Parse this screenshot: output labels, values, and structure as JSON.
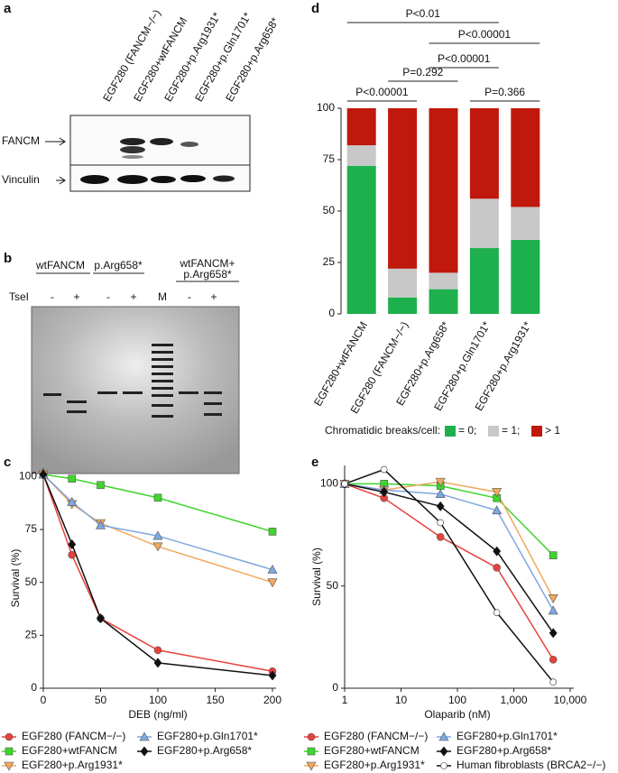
{
  "panel_labels": [
    "a",
    "b",
    "c",
    "d",
    "e"
  ],
  "blot": {
    "lanes": [
      "EGF280 (FANCM−/−)",
      "EGF280+wtFANCM",
      "EGF280+p.Arg1931*",
      "EGF280+p.Gln1701*",
      "EGF280+p.Arg658*"
    ],
    "rows": [
      "FANCM",
      "Vinculin"
    ]
  },
  "gel": {
    "groups": [
      [
        "wtFANCM"
      ],
      [
        "p.Arg658*"
      ],
      [
        "wtFANCM+",
        "p.Arg658*"
      ]
    ],
    "enzyme": "TseI",
    "lanes": [
      "-",
      "+",
      "-",
      "+",
      "M",
      "-",
      "+"
    ]
  },
  "chart_data": [
    {
      "type": "stacked-bar",
      "categories": [
        "EGF280+wtFANCM",
        "EGF280 (FANCM−/−)",
        "EGF280+p.Arg658*",
        "EGF280+p.Gln1701*",
        "EGF280+p.Arg1931*"
      ],
      "ylim": [
        0,
        100
      ],
      "yticks": [
        0,
        25,
        50,
        75,
        100
      ],
      "legend_title": "Chromatidic breaks/cell:",
      "series": [
        {
          "name": "= 0;",
          "color": "#1db04c",
          "values": [
            72,
            8,
            12,
            32,
            36
          ]
        },
        {
          "name": "= 1;",
          "color": "#c8c8c8",
          "values": [
            10,
            14,
            8,
            24,
            16
          ]
        },
        {
          "name": "> 1",
          "color": "#c0180c",
          "values": [
            18,
            78,
            80,
            44,
            48
          ]
        }
      ],
      "annotations": [
        "P<0.01",
        "P<0.00001",
        "P<0.00001",
        "P=0.292",
        "P<0.00001",
        "P=0.366"
      ]
    },
    {
      "type": "line",
      "xlabel": "DEB (ng/ml)",
      "ylabel": "Survival (%)",
      "x": [
        0,
        25,
        50,
        100,
        200
      ],
      "xlim": [
        0,
        200
      ],
      "xticks": [
        0,
        50,
        100,
        150,
        200
      ],
      "ylim": [
        0,
        104
      ],
      "yticks": [
        0,
        25,
        50,
        75,
        100
      ],
      "series": [
        {
          "name": "EGF280 (FANCM−/−)",
          "color": "#e8413c",
          "marker": "circle",
          "values": [
            101,
            63,
            33,
            18,
            8
          ]
        },
        {
          "name": "EGF280+wtFANCM",
          "color": "#3ed62c",
          "marker": "square",
          "values": [
            101,
            99,
            96,
            90,
            74
          ]
        },
        {
          "name": "EGF280+p.Arg1931*",
          "color": "#f0a860",
          "marker": "triangle-down",
          "values": [
            101,
            87,
            78,
            67,
            50
          ]
        },
        {
          "name": "EGF280+p.Gln1701*",
          "color": "#7ea8e0",
          "marker": "triangle-up",
          "values": [
            101,
            88,
            77,
            72,
            56
          ]
        },
        {
          "name": "EGF280+p.Arg658*",
          "color": "#111111",
          "marker": "diamond",
          "values": [
            101,
            68,
            33,
            12,
            6
          ]
        }
      ]
    },
    {
      "type": "line",
      "xlabel": "Olaparib (nM)",
      "ylabel": "Survival (%)",
      "xscale": "log",
      "x": [
        1,
        5,
        50,
        500,
        5000
      ],
      "xlim": [
        1,
        10000
      ],
      "xticks": [
        1,
        10,
        100,
        {
          "value": 1000,
          "label": "1,000"
        },
        {
          "value": 10000,
          "label": "10,000"
        }
      ],
      "ylim": [
        0,
        109
      ],
      "yticks": [
        0,
        50,
        100
      ],
      "series": [
        {
          "name": "EGF280 (FANCM−/−)",
          "color": "#e8413c",
          "marker": "circle",
          "values": [
            100,
            93,
            74,
            59,
            14
          ]
        },
        {
          "name": "EGF280+wtFANCM",
          "color": "#3ed62c",
          "marker": "square",
          "values": [
            100,
            100,
            99,
            93,
            65
          ]
        },
        {
          "name": "EGF280+p.Arg1931*",
          "color": "#f0a860",
          "marker": "triangle-down",
          "values": [
            100,
            97,
            101,
            96,
            44
          ]
        },
        {
          "name": "EGF280+p.Gln1701*",
          "color": "#7ea8e0",
          "marker": "triangle-up",
          "values": [
            100,
            97,
            95,
            87,
            38
          ]
        },
        {
          "name": "EGF280+p.Arg658*",
          "color": "#111111",
          "marker": "diamond",
          "values": [
            100,
            96,
            89,
            67,
            27
          ]
        },
        {
          "name": "Human fibroblasts (BRCA2−/−)",
          "color": "#111111",
          "marker": "open-circle",
          "values": [
            100,
            107,
            81,
            37,
            3
          ]
        }
      ]
    }
  ]
}
